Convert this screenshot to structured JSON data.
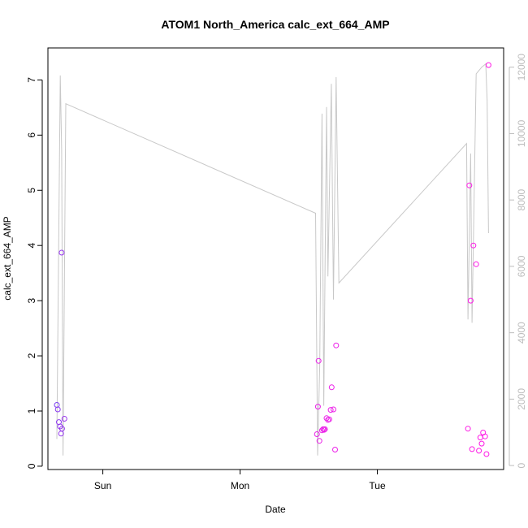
{
  "chart_data": {
    "type": "scatter",
    "title": "ATOM1 North_America calc_ext_664_AMP",
    "xlabel": "Date",
    "ylabel": "calc_ext_664_AMP",
    "x_ticks": [
      {
        "label": "Sun",
        "t": 1.0
      },
      {
        "label": "Mon",
        "t": 2.0
      },
      {
        "label": "Tue",
        "t": 3.0
      }
    ],
    "xlim": [
      0.6,
      3.92
    ],
    "ylim": [
      -0.06,
      7.58
    ],
    "y_ticks": [
      0,
      1,
      2,
      3,
      4,
      5,
      6,
      7
    ],
    "y2lim": [
      -120,
      12580
    ],
    "y2_ticks": [
      0,
      2000,
      4000,
      6000,
      8000,
      10000,
      12000
    ],
    "colors": {
      "line": "#c8c8c8",
      "point_start": "#7b3ff2",
      "point_end": "#ff1ae6",
      "right_axis": "#bdbdbd"
    },
    "points": [
      {
        "t": 0.665,
        "y": 1.11
      },
      {
        "t": 0.672,
        "y": 1.03
      },
      {
        "t": 0.68,
        "y": 0.8
      },
      {
        "t": 0.688,
        "y": 0.72
      },
      {
        "t": 0.696,
        "y": 0.59
      },
      {
        "t": 0.7,
        "y": 3.87
      },
      {
        "t": 0.703,
        "y": 0.68
      },
      {
        "t": 0.72,
        "y": 0.86
      },
      {
        "t": 2.56,
        "y": 0.58
      },
      {
        "t": 2.567,
        "y": 1.08
      },
      {
        "t": 2.572,
        "y": 1.91
      },
      {
        "t": 2.578,
        "y": 0.46
      },
      {
        "t": 2.597,
        "y": 0.65
      },
      {
        "t": 2.605,
        "y": 0.67
      },
      {
        "t": 2.612,
        "y": 0.66
      },
      {
        "t": 2.618,
        "y": 0.67
      },
      {
        "t": 2.63,
        "y": 0.87
      },
      {
        "t": 2.64,
        "y": 0.84
      },
      {
        "t": 2.65,
        "y": 0.85
      },
      {
        "t": 2.66,
        "y": 1.02
      },
      {
        "t": 2.667,
        "y": 1.43
      },
      {
        "t": 2.68,
        "y": 1.03
      },
      {
        "t": 2.692,
        "y": 0.3
      },
      {
        "t": 2.7,
        "y": 2.19
      },
      {
        "t": 3.66,
        "y": 0.68
      },
      {
        "t": 3.67,
        "y": 5.09
      },
      {
        "t": 3.68,
        "y": 3.0
      },
      {
        "t": 3.69,
        "y": 0.31
      },
      {
        "t": 3.7,
        "y": 4.0
      },
      {
        "t": 3.72,
        "y": 3.66
      },
      {
        "t": 3.74,
        "y": 0.28
      },
      {
        "t": 3.75,
        "y": 0.52
      },
      {
        "t": 3.76,
        "y": 0.41
      },
      {
        "t": 3.77,
        "y": 0.61
      },
      {
        "t": 3.785,
        "y": 0.54
      },
      {
        "t": 3.795,
        "y": 0.22
      },
      {
        "t": 3.81,
        "y": 7.27
      }
    ],
    "line_series": [
      {
        "t": 0.665,
        "y2": 800
      },
      {
        "t": 0.69,
        "y2": 11750
      },
      {
        "t": 0.7,
        "y2": 9500
      },
      {
        "t": 0.71,
        "y2": 300
      },
      {
        "t": 0.73,
        "y2": 10900
      },
      {
        "t": 2.55,
        "y2": 7600
      },
      {
        "t": 2.565,
        "y2": 300
      },
      {
        "t": 2.58,
        "y2": 3000
      },
      {
        "t": 2.597,
        "y2": 10600
      },
      {
        "t": 2.61,
        "y2": 1800
      },
      {
        "t": 2.63,
        "y2": 10800
      },
      {
        "t": 2.64,
        "y2": 5700
      },
      {
        "t": 2.665,
        "y2": 11500
      },
      {
        "t": 2.68,
        "y2": 5000
      },
      {
        "t": 2.7,
        "y2": 11700
      },
      {
        "t": 2.72,
        "y2": 5500
      },
      {
        "t": 3.65,
        "y2": 9700
      },
      {
        "t": 3.66,
        "y2": 4400
      },
      {
        "t": 3.68,
        "y2": 9400
      },
      {
        "t": 3.69,
        "y2": 4300
      },
      {
        "t": 3.72,
        "y2": 11800
      },
      {
        "t": 3.76,
        "y2": 12000
      },
      {
        "t": 3.79,
        "y2": 12100
      },
      {
        "t": 3.8,
        "y2": 11000
      },
      {
        "t": 3.81,
        "y2": 7000
      }
    ]
  }
}
